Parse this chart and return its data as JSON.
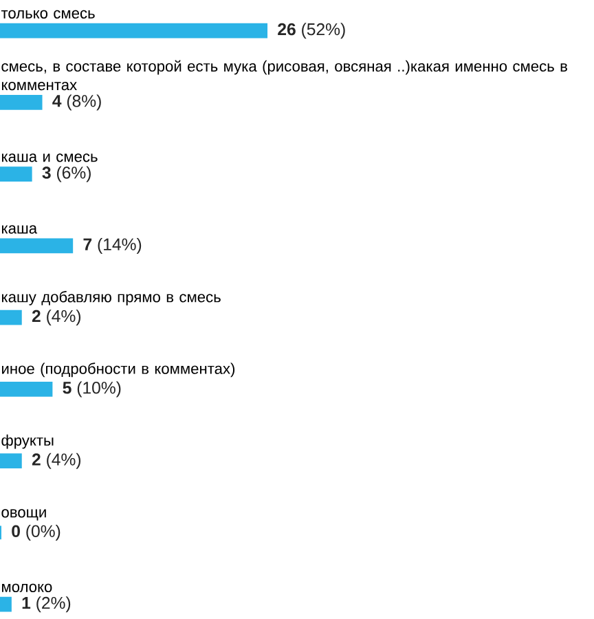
{
  "chart_data": {
    "type": "bar",
    "orientation": "horizontal",
    "color": "#2bb3e6",
    "categories": [
      "только смесь",
      "смесь, в составе которой есть мука (рисовая, овсяная ..)какая именно смесь в комментах",
      "каша и смесь",
      "каша",
      "кашу добавляю прямо в смесь",
      "иное (подробности в комментах)",
      "фрукты",
      "овощи",
      "молоко"
    ],
    "values": [
      26,
      4,
      3,
      7,
      2,
      5,
      2,
      0,
      1
    ],
    "value_labels": [
      "**26** (52%)",
      "**4** (8%)",
      "**3** (6%)",
      "**7** (14%)",
      "**2** (4%)",
      "**5** (10%)",
      "**2** (4%)",
      "**0** (0%)",
      "**1** (2%)"
    ]
  }
}
